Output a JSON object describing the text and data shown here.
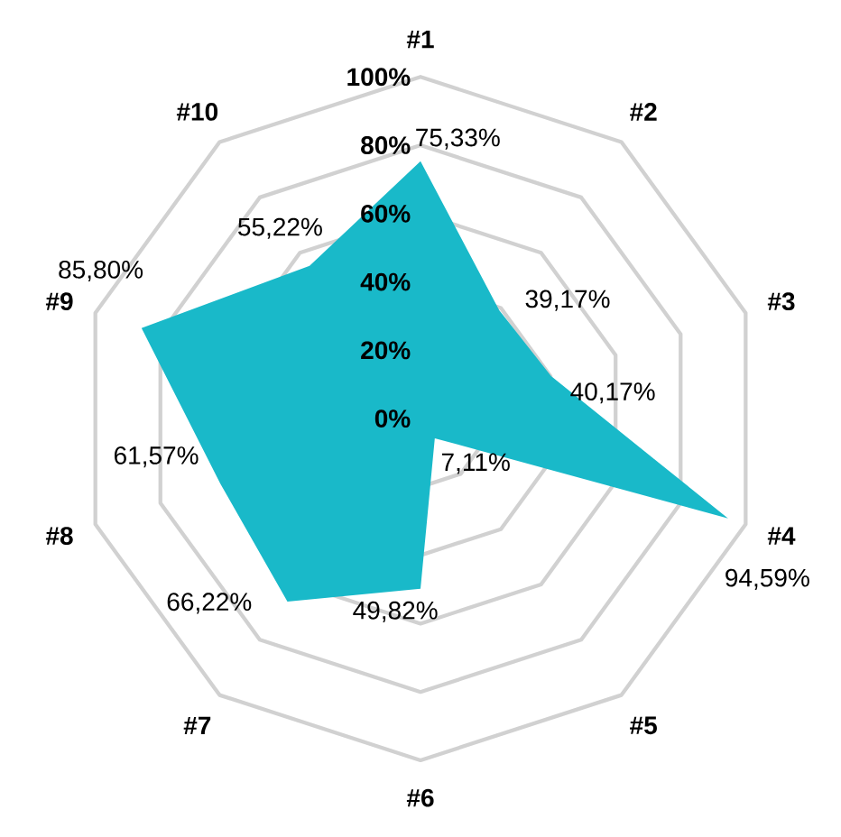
{
  "chart_data": {
    "type": "radar",
    "categories": [
      "#1",
      "#2",
      "#3",
      "#4",
      "#5",
      "#6",
      "#7",
      "#8",
      "#9",
      "#10"
    ],
    "ylim": [
      0,
      100
    ],
    "yticks": [
      {
        "value": 0,
        "label": "0%"
      },
      {
        "value": 20,
        "label": "20%"
      },
      {
        "value": 40,
        "label": "40%"
      },
      {
        "value": 60,
        "label": "60%"
      },
      {
        "value": 80,
        "label": "80%"
      },
      {
        "value": 100,
        "label": "100%"
      }
    ],
    "grid": true,
    "series": [
      {
        "color": "#19b9c9",
        "values": [
          75.33,
          39.17,
          40.17,
          94.59,
          7.11,
          49.82,
          66.22,
          61.57,
          85.8,
          55.22
        ],
        "value_labels": [
          "75,33%",
          "39,17%",
          "40,17%",
          "94,59%",
          "7,11%",
          "49,82%",
          "66,22%",
          "61,57%",
          "85,80%",
          "55,22%"
        ]
      }
    ]
  }
}
